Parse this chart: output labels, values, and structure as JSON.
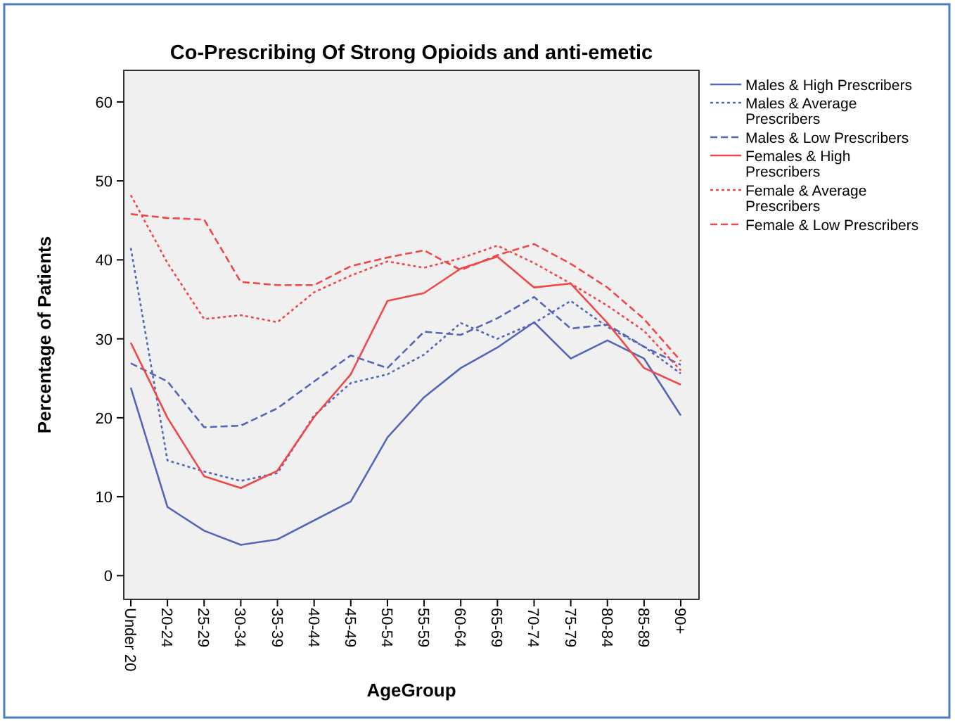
{
  "chart_data": {
    "type": "line",
    "title": "Co-Prescribing Of Strong Opioids and anti-emetic",
    "xlabel": "AgeGroup",
    "ylabel": "Percentage of Patients",
    "categories": [
      "Under 20",
      "20-24",
      "25-29",
      "30-34",
      "35-39",
      "40-44",
      "45-49",
      "50-54",
      "55-59",
      "60-64",
      "65-69",
      "70-74",
      "75-79",
      "80-84",
      "85-89",
      "90+"
    ],
    "ylim": [
      -3,
      64
    ],
    "yticks": [
      0,
      10,
      20,
      30,
      40,
      50,
      60
    ],
    "grid": false,
    "legend": "right",
    "series": [
      {
        "name": "Males & High Prescribers",
        "color": "#5566b8",
        "line_style": "solid",
        "values": [
          23.8,
          8.7,
          5.7,
          3.9,
          4.6,
          7,
          9.4,
          17.5,
          22.6,
          26.3,
          28.9,
          32.1,
          27.5,
          29.8,
          27.5,
          20.3
        ]
      },
      {
        "name": "Males & Average Prescribers",
        "color": "#5566b8",
        "line_style": "dotted",
        "values": [
          41.5,
          14.6,
          13.2,
          12,
          13,
          20.3,
          24.4,
          25.5,
          28,
          32,
          30,
          32,
          34.8,
          31.5,
          29,
          25.6
        ]
      },
      {
        "name": "Males & Low Prescribers",
        "color": "#5566b8",
        "line_style": "dashed",
        "values": [
          26.9,
          24.6,
          18.8,
          19,
          21.2,
          24.6,
          27.9,
          26.3,
          30.9,
          30.5,
          32.6,
          35.3,
          31.3,
          31.8,
          29,
          26.7
        ]
      },
      {
        "name": "Females & High Prescribers",
        "color": "#f04848",
        "line_style": "solid",
        "values": [
          29.5,
          20,
          12.6,
          11.1,
          13.3,
          20.1,
          25.5,
          34.8,
          35.8,
          38.9,
          40.4,
          36.5,
          37,
          32,
          26.3,
          24.2
        ]
      },
      {
        "name": "Female & Average Prescribers",
        "color": "#f04848",
        "line_style": "dotted",
        "values": [
          48.2,
          39.6,
          32.5,
          33,
          32.1,
          35.9,
          38,
          39.8,
          39,
          40.2,
          41.8,
          39.6,
          37,
          34.2,
          31,
          26
        ]
      },
      {
        "name": "Female & Low Prescribers",
        "color": "#f04848",
        "line_style": "dashed",
        "values": [
          45.8,
          45.3,
          45.1,
          37.2,
          36.8,
          36.8,
          39.2,
          40.3,
          41.2,
          38.7,
          40.6,
          42,
          39.5,
          36.5,
          32.5,
          27.2
        ]
      }
    ]
  }
}
